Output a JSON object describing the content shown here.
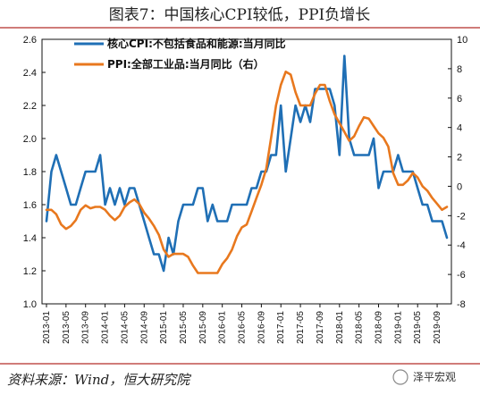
{
  "header": {
    "title": "图表7：中国核心CPI较低，PPI负增长"
  },
  "footer": {
    "source": "资料来源：Wind，恒大研究院",
    "watermark": "泽平宏观"
  },
  "colors": {
    "core_cpi": "#1f6fb5",
    "ppi": "#e8781e",
    "frame": "#111111",
    "separator": "#c0504d"
  },
  "chart_data": {
    "type": "line",
    "title": "",
    "x": [
      "2013-01",
      "2013-02",
      "2013-03",
      "2013-04",
      "2013-05",
      "2013-06",
      "2013-07",
      "2013-08",
      "2013-09",
      "2013-10",
      "2013-11",
      "2013-12",
      "2014-01",
      "2014-02",
      "2014-03",
      "2014-04",
      "2014-05",
      "2014-06",
      "2014-07",
      "2014-08",
      "2014-09",
      "2014-10",
      "2014-11",
      "2014-12",
      "2015-01",
      "2015-02",
      "2015-03",
      "2015-04",
      "2015-05",
      "2015-06",
      "2015-07",
      "2015-08",
      "2015-09",
      "2015-10",
      "2015-11",
      "2015-12",
      "2016-01",
      "2016-02",
      "2016-03",
      "2016-04",
      "2016-05",
      "2016-06",
      "2016-07",
      "2016-08",
      "2016-09",
      "2016-10",
      "2016-11",
      "2016-12",
      "2017-01",
      "2017-02",
      "2017-03",
      "2017-04",
      "2017-05",
      "2017-06",
      "2017-07",
      "2017-08",
      "2017-09",
      "2017-10",
      "2017-11",
      "2017-12",
      "2018-01",
      "2018-02",
      "2018-03",
      "2018-04",
      "2018-05",
      "2018-06",
      "2018-07",
      "2018-08",
      "2018-09",
      "2018-10",
      "2018-11",
      "2018-12",
      "2019-01",
      "2019-02",
      "2019-03",
      "2019-04",
      "2019-05",
      "2019-06",
      "2019-07",
      "2019-08",
      "2019-09",
      "2019-10",
      "2019-11"
    ],
    "x_tick_labels": [
      "2013-01",
      "2013-05",
      "2013-09",
      "2014-01",
      "2014-05",
      "2014-09",
      "2015-01",
      "2015-05",
      "2015-09",
      "2016-01",
      "2016-05",
      "2016-09",
      "2017-01",
      "2017-05",
      "2017-09",
      "2018-01",
      "2018-05",
      "2018-09",
      "2019-01",
      "2019-05",
      "2019-09"
    ],
    "y_left": {
      "label": "",
      "lim": [
        1.0,
        2.6
      ],
      "ticks": [
        "1.0",
        "1.2",
        "1.4",
        "1.6",
        "1.8",
        "2.0",
        "2.2",
        "2.4",
        "2.6"
      ]
    },
    "y_right": {
      "label": "",
      "lim": [
        -8,
        10
      ],
      "ticks": [
        "-8",
        "-6",
        "-4",
        "-2",
        "0",
        "2",
        "4",
        "6",
        "8",
        "10"
      ]
    },
    "grid": false,
    "legend": "top-left",
    "series": [
      {
        "name": "核心CPI:不包括食品和能源:当月同比",
        "axis": "left",
        "values": [
          1.5,
          1.8,
          1.9,
          1.8,
          1.7,
          1.6,
          1.6,
          1.7,
          1.8,
          1.8,
          1.8,
          1.9,
          1.6,
          1.7,
          1.6,
          1.7,
          1.6,
          1.7,
          1.7,
          1.6,
          1.5,
          1.4,
          1.3,
          1.3,
          1.2,
          1.4,
          1.3,
          1.5,
          1.6,
          1.6,
          1.6,
          1.7,
          1.7,
          1.5,
          1.6,
          1.5,
          1.5,
          1.5,
          1.6,
          1.6,
          1.6,
          1.6,
          1.7,
          1.7,
          1.8,
          1.8,
          1.9,
          1.9,
          2.2,
          1.8,
          2.0,
          2.2,
          2.1,
          2.2,
          2.1,
          2.3,
          2.3,
          2.3,
          2.3,
          2.2,
          1.9,
          2.5,
          2.0,
          1.9,
          1.9,
          1.9,
          1.9,
          2.0,
          1.7,
          1.8,
          1.8,
          1.8,
          1.9,
          1.8,
          1.8,
          1.8,
          1.7,
          1.6,
          1.6,
          1.5,
          1.5,
          1.5,
          1.4
        ]
      },
      {
        "name": "PPI:全部工业品:当月同比（右）",
        "axis": "right",
        "values": [
          -1.6,
          -1.6,
          -1.9,
          -2.6,
          -2.9,
          -2.7,
          -2.3,
          -1.6,
          -1.3,
          -1.5,
          -1.4,
          -1.4,
          -1.6,
          -2.0,
          -2.3,
          -2.0,
          -1.4,
          -1.1,
          -0.9,
          -1.2,
          -1.8,
          -2.2,
          -2.7,
          -3.3,
          -4.3,
          -4.8,
          -4.6,
          -4.6,
          -4.6,
          -4.8,
          -5.4,
          -5.9,
          -5.9,
          -5.9,
          -5.9,
          -5.9,
          -5.3,
          -4.9,
          -4.3,
          -3.4,
          -2.8,
          -2.6,
          -1.7,
          -0.8,
          0.1,
          1.2,
          3.3,
          5.5,
          6.9,
          7.8,
          7.6,
          6.4,
          5.5,
          5.5,
          5.5,
          6.3,
          6.9,
          6.9,
          5.8,
          4.9,
          4.3,
          3.7,
          3.1,
          3.4,
          4.1,
          4.7,
          4.6,
          4.1,
          3.6,
          3.3,
          2.7,
          0.9,
          0.1,
          0.1,
          0.4,
          0.9,
          0.6,
          0.0,
          -0.3,
          -0.8,
          -1.2,
          -1.6,
          -1.4
        ]
      }
    ]
  }
}
